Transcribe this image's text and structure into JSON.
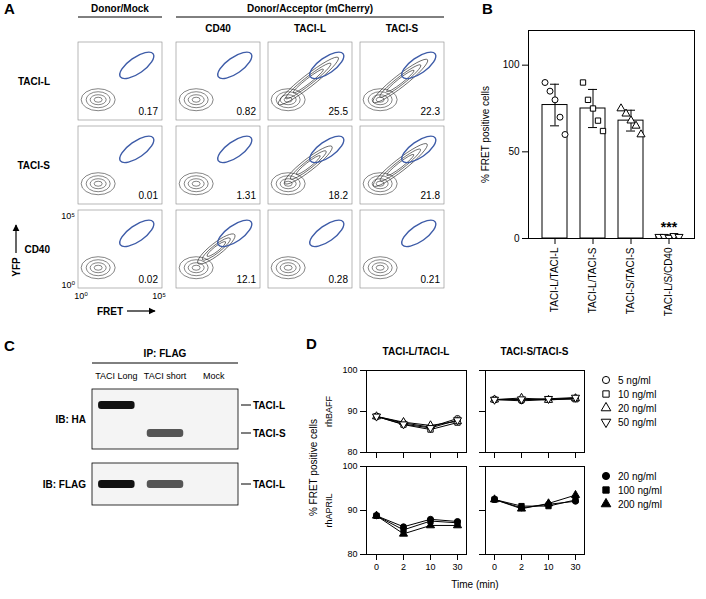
{
  "panels": {
    "A": {
      "label": "A",
      "group_headers": [
        "Donor/Mock",
        "Donor/Acceptor (mCherry)"
      ],
      "column_labels": [
        "CD40",
        "TACI-L",
        "TACI-S"
      ],
      "row_labels": [
        "TACI-L",
        "TACI-S",
        "CD40"
      ],
      "gate_percentages": [
        [
          0.17,
          0.82,
          25.5,
          22.3
        ],
        [
          0.01,
          1.31,
          18.2,
          21.8
        ],
        [
          0.02,
          12.1,
          0.28,
          0.21
        ]
      ],
      "xlabel": "FRET",
      "ylabel": "YFP",
      "ticks": [
        {
          "value": 0,
          "label": "10⁰"
        },
        {
          "value": 5,
          "label": "10⁵"
        }
      ]
    },
    "C": {
      "label": "C",
      "header": "IP: FLAG",
      "lanes": [
        "TACI Long",
        "TACI short",
        "Mock"
      ],
      "blots": [
        {
          "label": "IB: HA",
          "markers": [
            "TACI-L",
            "TACI-S"
          ],
          "bands": [
            {
              "lane": "TACI Long",
              "marker": "TACI-L"
            },
            {
              "lane": "TACI short",
              "marker": "TACI-S"
            }
          ]
        },
        {
          "label": "IB: FLAG",
          "markers": [
            "TACI-L"
          ],
          "bands": [
            {
              "lane": "TACI Long",
              "marker": "TACI-L"
            },
            {
              "lane": "TACI short",
              "marker": "TACI-L"
            }
          ]
        }
      ]
    }
  },
  "chart_data": [
    {
      "label": "B",
      "type": "bar",
      "categories": [
        "TACI-L/TACI-L",
        "TACI-L/TACI-S",
        "TACI-S/TACI-S",
        "TACI-L/S/CD40"
      ],
      "values": [
        77,
        75,
        68,
        1
      ],
      "error": [
        12,
        11,
        6,
        1
      ],
      "points": [
        {
          "category": "TACI-L/TACI-L",
          "marker": "circle_open",
          "values": [
            90,
            85,
            80,
            70,
            60
          ]
        },
        {
          "category": "TACI-L/TACI-S",
          "marker": "square_open",
          "values": [
            90,
            80,
            75,
            68,
            62
          ]
        },
        {
          "category": "TACI-S/TACI-S",
          "marker": "triangle_open",
          "values": [
            75,
            72,
            68,
            65,
            60
          ]
        },
        {
          "category": "TACI-L/S/CD40",
          "marker": "triangle-down_open",
          "values": [
            1,
            1,
            0.5,
            1.5,
            1
          ]
        }
      ],
      "color": "#000000",
      "ylabel": "% FRET positive cells",
      "ylim": [
        0,
        120
      ],
      "yticks": [
        0,
        50,
        100
      ],
      "annotations": [
        {
          "category": "TACI-L/S/CD40",
          "text": "***"
        }
      ]
    },
    {
      "label": "D",
      "type": "line",
      "categories": [
        "0",
        "2",
        "10",
        "30"
      ],
      "xlabel": "Time (min)",
      "ylabel": "% FRET positive cells",
      "columns": [
        "TACI-L/TACI-L",
        "TACI-S/TACI-S"
      ],
      "ylim": [
        80,
        100
      ],
      "yticks": [
        80,
        90,
        100
      ],
      "color": "#000000",
      "rows": [
        {
          "label": "rhBAFF",
          "series": [
            {
              "name": "5 ng/ml",
              "marker": "circle_open",
              "values": [
                [
                  88.8,
                  87.2,
                  86.2,
                  88.3
                ],
                [
                  92.9,
                  92.6,
                  92.9,
                  93.3
                ]
              ]
            },
            {
              "name": "10 ng/ml",
              "marker": "square_open",
              "values": [
                [
                  88.8,
                  86.8,
                  85.6,
                  87.3
                ],
                [
                  92.9,
                  92.9,
                  93.0,
                  93.0
                ]
              ]
            },
            {
              "name": "20 ng/ml",
              "marker": "triangle_open",
              "values": [
                [
                  88.8,
                  87.4,
                  86.6,
                  87.6
                ],
                [
                  92.9,
                  93.3,
                  92.8,
                  93.2
                ]
              ]
            },
            {
              "name": "50 ng/ml",
              "marker": "triangle-down_open",
              "values": [
                [
                  88.8,
                  86.9,
                  86.0,
                  87.9
                ],
                [
                  92.9,
                  93.0,
                  93.1,
                  93.4
                ]
              ]
            }
          ]
        },
        {
          "label": "rhAPRIL",
          "series": [
            {
              "name": "20 ng/ml",
              "marker": "circle_filled",
              "values": [
                [
                  88.8,
                  86.3,
                  88.0,
                  87.5
                ],
                [
                  92.5,
                  90.6,
                  91.4,
                  92.1
                ]
              ]
            },
            {
              "name": "100 ng/ml",
              "marker": "square_filled",
              "values": [
                [
                  88.8,
                  85.6,
                  87.6,
                  87.2
                ],
                [
                  92.5,
                  91.0,
                  91.0,
                  92.4
                ]
              ]
            },
            {
              "name": "200 ng/ml",
              "marker": "triangle_filled",
              "values": [
                [
                  88.8,
                  84.7,
                  86.6,
                  86.6
                ],
                [
                  92.5,
                  90.4,
                  91.6,
                  93.5
                ]
              ]
            }
          ]
        }
      ]
    }
  ]
}
